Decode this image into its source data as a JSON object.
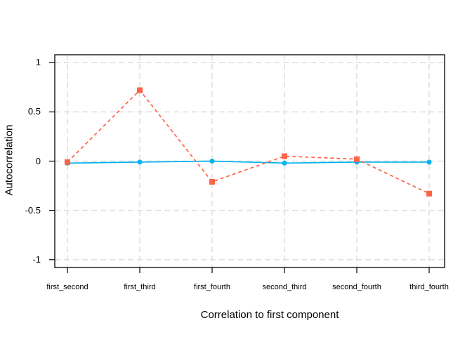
{
  "chart_data": {
    "type": "line",
    "title": "",
    "xlabel": "Correlation to first component",
    "ylabel": "Autocorrelation",
    "categories": [
      "first_second",
      "first_third",
      "first_fourth",
      "second_third",
      "second_fourth",
      "third_fourth"
    ],
    "series": [
      {
        "id": "blue-circle-series",
        "marker": "circle",
        "line_style": "solid",
        "color": "#00B2EE",
        "values": [
          -0.02,
          -0.01,
          0.0,
          -0.02,
          -0.01,
          -0.01
        ]
      },
      {
        "id": "red-square-series",
        "marker": "square",
        "line_style": "dashed",
        "color": "#FF6347",
        "values": [
          -0.01,
          0.72,
          -0.21,
          0.05,
          0.02,
          -0.33
        ]
      }
    ],
    "yticks": {
      "values": [
        1,
        0.5,
        0,
        -0.5,
        -1
      ],
      "labels": [
        "1",
        "0.5",
        "0",
        "-0.5",
        "-1"
      ]
    },
    "ylim": [
      -1.08,
      1.08
    ],
    "grid": true,
    "grid_color": "#E0E0E0",
    "axis_color": "#000000",
    "background": "#FFFFFF",
    "legend_position": "none"
  }
}
